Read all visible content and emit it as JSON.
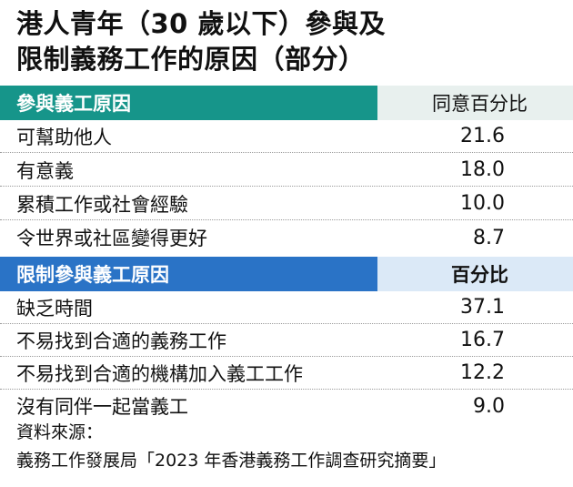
{
  "title": {
    "line1": "港人青年（30 歲以下）參與及",
    "line2": "限制義務工作的原因（部分）"
  },
  "section1": {
    "header_label": "參與義工原因",
    "header_value": "同意百分比",
    "rows": [
      {
        "label": "可幫助他人",
        "value": "21.6"
      },
      {
        "label": "有意義",
        "value": "18.0"
      },
      {
        "label": "累積工作或社會經驗",
        "value": "10.0"
      },
      {
        "label": "令世界或社區變得更好",
        "value": "8.7"
      }
    ]
  },
  "section2": {
    "header_label": "限制參與義工原因",
    "header_value": "百分比",
    "rows": [
      {
        "label": "缺乏時間",
        "value": "37.1"
      },
      {
        "label": "不易找到合適的義務工作",
        "value": "16.7"
      },
      {
        "label": "不易找到合適的機構加入義工工作",
        "value": "12.2"
      },
      {
        "label": "沒有同伴一起當義工",
        "value": "9.0"
      }
    ]
  },
  "source": {
    "line1": "資料來源：",
    "line2": "義務工作發展局「2023 年香港義務工作調查研究摘要」"
  },
  "colors": {
    "section1_accent": "#16958a",
    "section2_accent": "#2a73c6"
  }
}
